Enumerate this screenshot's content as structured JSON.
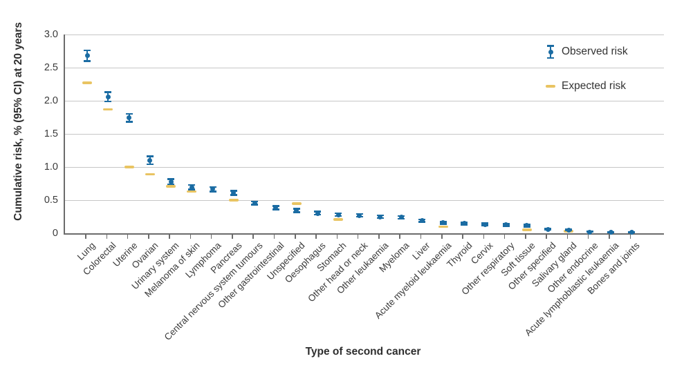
{
  "chart_data": {
    "type": "scatter",
    "title": "",
    "xlabel": "Type of second cancer",
    "ylabel": "Cumulative risk, % (95% CI) at 20 years",
    "ylim": [
      0,
      3.0
    ],
    "yticks": [
      0,
      0.5,
      1.0,
      1.5,
      2.0,
      2.5,
      3.0
    ],
    "ytick_labels": [
      "0",
      "0.5",
      "1.0",
      "1.5",
      "2.0",
      "2.5",
      "3.0"
    ],
    "grid": true,
    "legend_position": "top-right-inside",
    "legend": [
      {
        "label": "Observed risk",
        "marker": "point-with-error-bar"
      },
      {
        "label": "Expected risk",
        "marker": "dash"
      }
    ],
    "colors": {
      "observed": "#1b6ca3",
      "expected": "#e9c462",
      "grid": "#c6c6c6",
      "axis": "#6b6b6b"
    },
    "points": [
      {
        "category": "Lung",
        "observed": 2.68,
        "ci_low": 2.6,
        "ci_high": 2.76,
        "expected": 2.27
      },
      {
        "category": "Colorectal",
        "observed": 2.06,
        "ci_low": 1.99,
        "ci_high": 2.13,
        "expected": 1.87
      },
      {
        "category": "Uterine",
        "observed": 1.74,
        "ci_low": 1.68,
        "ci_high": 1.8,
        "expected": 1.0
      },
      {
        "category": "Ovarian",
        "observed": 1.1,
        "ci_low": 1.04,
        "ci_high": 1.16,
        "expected": 0.89
      },
      {
        "category": "Urinary system",
        "observed": 0.78,
        "ci_low": 0.74,
        "ci_high": 0.82,
        "expected": 0.71
      },
      {
        "category": "Melanoma of skin",
        "observed": 0.69,
        "ci_low": 0.66,
        "ci_high": 0.73,
        "expected": 0.63
      },
      {
        "category": "Lymphoma",
        "observed": 0.67,
        "ci_low": 0.63,
        "ci_high": 0.7,
        "expected": null
      },
      {
        "category": "Pancreas",
        "observed": 0.61,
        "ci_low": 0.58,
        "ci_high": 0.64,
        "expected": 0.5
      },
      {
        "category": "Central nervous system tumours",
        "observed": 0.45,
        "ci_low": 0.43,
        "ci_high": 0.48,
        "expected": null
      },
      {
        "category": "Other gastrointestinal",
        "observed": 0.39,
        "ci_low": 0.36,
        "ci_high": 0.41,
        "expected": null
      },
      {
        "category": "Unspecified",
        "observed": 0.35,
        "ci_low": 0.32,
        "ci_high": 0.37,
        "expected": 0.45
      },
      {
        "category": "Oesophagus",
        "observed": 0.3,
        "ci_low": 0.28,
        "ci_high": 0.33,
        "expected": null
      },
      {
        "category": "Stomach",
        "observed": 0.28,
        "ci_low": 0.26,
        "ci_high": 0.3,
        "expected": 0.21
      },
      {
        "category": "Other head or neck",
        "observed": 0.27,
        "ci_low": 0.25,
        "ci_high": 0.29,
        "expected": null
      },
      {
        "category": "Other leukaemia",
        "observed": 0.25,
        "ci_low": 0.23,
        "ci_high": 0.27,
        "expected": null
      },
      {
        "category": "Myeloma",
        "observed": 0.24,
        "ci_low": 0.22,
        "ci_high": 0.26,
        "expected": null
      },
      {
        "category": "Liver",
        "observed": 0.19,
        "ci_low": 0.17,
        "ci_high": 0.21,
        "expected": null
      },
      {
        "category": "Acute myeloid leukaemia",
        "observed": 0.16,
        "ci_low": 0.14,
        "ci_high": 0.17,
        "expected": 0.1
      },
      {
        "category": "Thyroid",
        "observed": 0.15,
        "ci_low": 0.13,
        "ci_high": 0.16,
        "expected": null
      },
      {
        "category": "Cervix",
        "observed": 0.13,
        "ci_low": 0.12,
        "ci_high": 0.15,
        "expected": null
      },
      {
        "category": "Other respiratory",
        "observed": 0.13,
        "ci_low": 0.11,
        "ci_high": 0.14,
        "expected": null
      },
      {
        "category": "Soft tissue",
        "observed": 0.12,
        "ci_low": 0.1,
        "ci_high": 0.13,
        "expected": 0.05
      },
      {
        "category": "Other specified",
        "observed": 0.06,
        "ci_low": 0.05,
        "ci_high": 0.07,
        "expected": null
      },
      {
        "category": "Salivary gland",
        "observed": 0.05,
        "ci_low": 0.04,
        "ci_high": 0.06,
        "expected": 0.03
      },
      {
        "category": "Other endocrine",
        "observed": 0.02,
        "ci_low": 0.02,
        "ci_high": 0.03,
        "expected": null
      },
      {
        "category": "Acute lymphoblastic leukaemia",
        "observed": 0.02,
        "ci_low": 0.01,
        "ci_high": 0.02,
        "expected": null
      },
      {
        "category": "Bones and joints",
        "observed": 0.02,
        "ci_low": 0.01,
        "ci_high": 0.02,
        "expected": null
      }
    ]
  }
}
